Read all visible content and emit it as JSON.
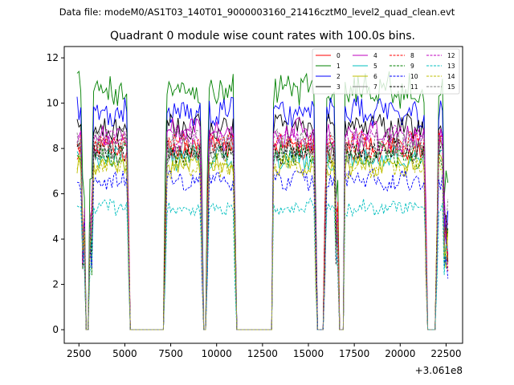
{
  "suptitle": "Data file: modeM0/AS1T03_140T01_9000003160_21416cztM0_level2_quad_clean.evt",
  "chart_data": {
    "type": "line",
    "title": "Quadrant 0 module wise count rates with 100.0s bins.",
    "xlabel": "",
    "ylabel": "",
    "offset_label": "+3.061e8",
    "xlim": [
      1700,
      23400
    ],
    "ylim": [
      -0.6,
      12.5
    ],
    "xticks": [
      2500,
      5000,
      7500,
      10000,
      12500,
      15000,
      17500,
      20000,
      22500
    ],
    "xtick_labels": [
      "2500",
      "5000",
      "7500",
      "10000",
      "12500",
      "15000",
      "17500",
      "20000",
      "22500"
    ],
    "yticks": [
      0,
      2,
      4,
      6,
      8,
      10,
      12
    ],
    "ytick_labels": [
      "0",
      "2",
      "4",
      "6",
      "8",
      "10",
      "12"
    ],
    "bin_width": 100,
    "segments": [
      [
        2400,
        2650
      ],
      [
        3300,
        5100
      ],
      [
        7300,
        9100
      ],
      [
        9600,
        10900
      ],
      [
        13100,
        15300
      ],
      [
        16000,
        16400
      ],
      [
        17000,
        18900
      ],
      [
        19000,
        21300
      ],
      [
        22100,
        22300
      ]
    ],
    "zero_intervals": [
      [
        2850,
        3000
      ],
      [
        5300,
        7100
      ],
      [
        9300,
        9400
      ],
      [
        11100,
        13000
      ],
      [
        15500,
        15800
      ],
      [
        16700,
        17000
      ],
      [
        18900,
        19000
      ],
      [
        21500,
        21900
      ]
    ],
    "end_time": 22600,
    "legend": {
      "placement": "top-right",
      "columns": 4
    },
    "series": [
      {
        "name": "0",
        "level": 8.0,
        "color": "#ff0000",
        "dashed": false
      },
      {
        "name": "1",
        "level": 10.6,
        "color": "#008000",
        "dashed": false
      },
      {
        "name": "2",
        "level": 9.6,
        "color": "#0000ff",
        "dashed": false
      },
      {
        "name": "3",
        "level": 8.9,
        "color": "#000000",
        "dashed": false
      },
      {
        "name": "4",
        "level": 8.7,
        "color": "#bf00bf",
        "dashed": false
      },
      {
        "name": "5",
        "level": 7.6,
        "color": "#00bfbf",
        "dashed": false
      },
      {
        "name": "6",
        "level": 7.3,
        "color": "#bfbf00",
        "dashed": false
      },
      {
        "name": "7",
        "level": 7.9,
        "color": "#808080",
        "dashed": false
      },
      {
        "name": "8",
        "level": 8.2,
        "color": "#ff0000",
        "dashed": true
      },
      {
        "name": "9",
        "level": 7.7,
        "color": "#008000",
        "dashed": true
      },
      {
        "name": "10",
        "level": 6.6,
        "color": "#0000ff",
        "dashed": true
      },
      {
        "name": "11",
        "level": 7.9,
        "color": "#000000",
        "dashed": true
      },
      {
        "name": "12",
        "level": 8.4,
        "color": "#bf00bf",
        "dashed": true
      },
      {
        "name": "13",
        "level": 5.4,
        "color": "#00bfbf",
        "dashed": true
      },
      {
        "name": "14",
        "level": 7.2,
        "color": "#bfbf00",
        "dashed": true
      },
      {
        "name": "15",
        "level": 8.3,
        "color": "#808080",
        "dashed": true
      }
    ]
  }
}
